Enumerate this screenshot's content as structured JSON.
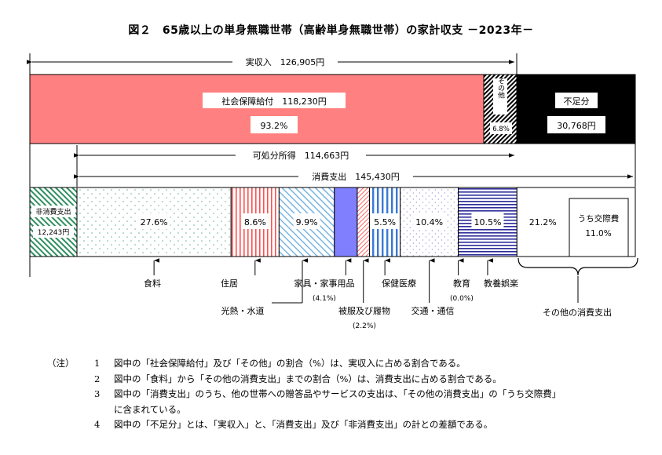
{
  "title": "図２　65歳以上の単身無職世帯（高齢単身無職世帯）の家計収支 －2023年－",
  "colors": {
    "social_security": "#ff8080",
    "shortfall": "#000000",
    "furniture": "#8080ff",
    "clothing_stroke": "#ff6666",
    "health_stripe": "#3a78d6",
    "recreation_stripe": "#2c2c99",
    "food_dots": "#6ab0a0",
    "nonconsumption_stripe": "#2f8f5f",
    "housing_stripe": "#ff5050",
    "fuel_stripe": "#70b0e0"
  },
  "chart_data": {
    "type": "bar",
    "income": {
      "label": "実収入",
      "value_text": "126,905円",
      "total": 126905,
      "segments": [
        {
          "name": "社会保障給付",
          "value_text": "118,230円",
          "value": 118230,
          "share_text": "93.2%",
          "share": 93.2
        },
        {
          "name": "その他",
          "share_text": "6.8%",
          "share": 6.8
        }
      ],
      "shortfall": {
        "name": "不足分",
        "value_text": "30,768円",
        "value": 30768
      }
    },
    "disposable": {
      "label": "可処分所得",
      "value_text": "114,663円",
      "value": 114663
    },
    "consumption": {
      "label": "消費支出",
      "value_text": "145,430円",
      "value": 145430
    },
    "non_consumption": {
      "name": "非消費支出",
      "value_text": "12,243円",
      "value": 12243
    },
    "expenditure_items": [
      {
        "name": "食料",
        "share": 27.6,
        "share_text": "27.6%"
      },
      {
        "name": "住居",
        "share": 8.6,
        "share_text": "8.6%"
      },
      {
        "name": "光熱・水道",
        "share": 9.9,
        "share_text": "9.9%"
      },
      {
        "name": "家具・家事用品",
        "share": 4.1,
        "share_text": "(4.1%)"
      },
      {
        "name": "被服及び履物",
        "share": 2.2,
        "share_text": "(2.2%)"
      },
      {
        "name": "保健医療",
        "share": 5.5,
        "share_text": "5.5%"
      },
      {
        "name": "交通・通信",
        "share": 10.4,
        "share_text": "10.4%"
      },
      {
        "name": "教育",
        "share": 0.0,
        "share_text": "(0.0%)"
      },
      {
        "name": "教養娯楽",
        "share": 10.5,
        "share_text": "10.5%"
      },
      {
        "name": "その他の消費支出",
        "share": 21.2,
        "share_text": "21.2%"
      }
    ],
    "other_breakdown": {
      "name": "うち交際費",
      "share": 11.0,
      "share_text": "11.0%"
    }
  },
  "notes": {
    "mark": "（注）",
    "items": [
      {
        "num": "1",
        "text": "図中の「社会保障給付」及び「その他」の割合（%）は、実収入に占める割合である。"
      },
      {
        "num": "2",
        "text": "図中の「食料」から「その他の消費支出」までの割合（%）は、消費支出に占める割合である。"
      },
      {
        "num": "3",
        "text": "図中の「消費支出」のうち、他の世帯への贈答品やサービスの支出は、「その他の消費支出」の「うち交際費」"
      },
      {
        "num": "",
        "text": "に含まれている。"
      },
      {
        "num": "4",
        "text": "図中の「不足分」とは、「実収入」と、「消費支出」及び「非消費支出」の計との差額である。"
      }
    ]
  }
}
